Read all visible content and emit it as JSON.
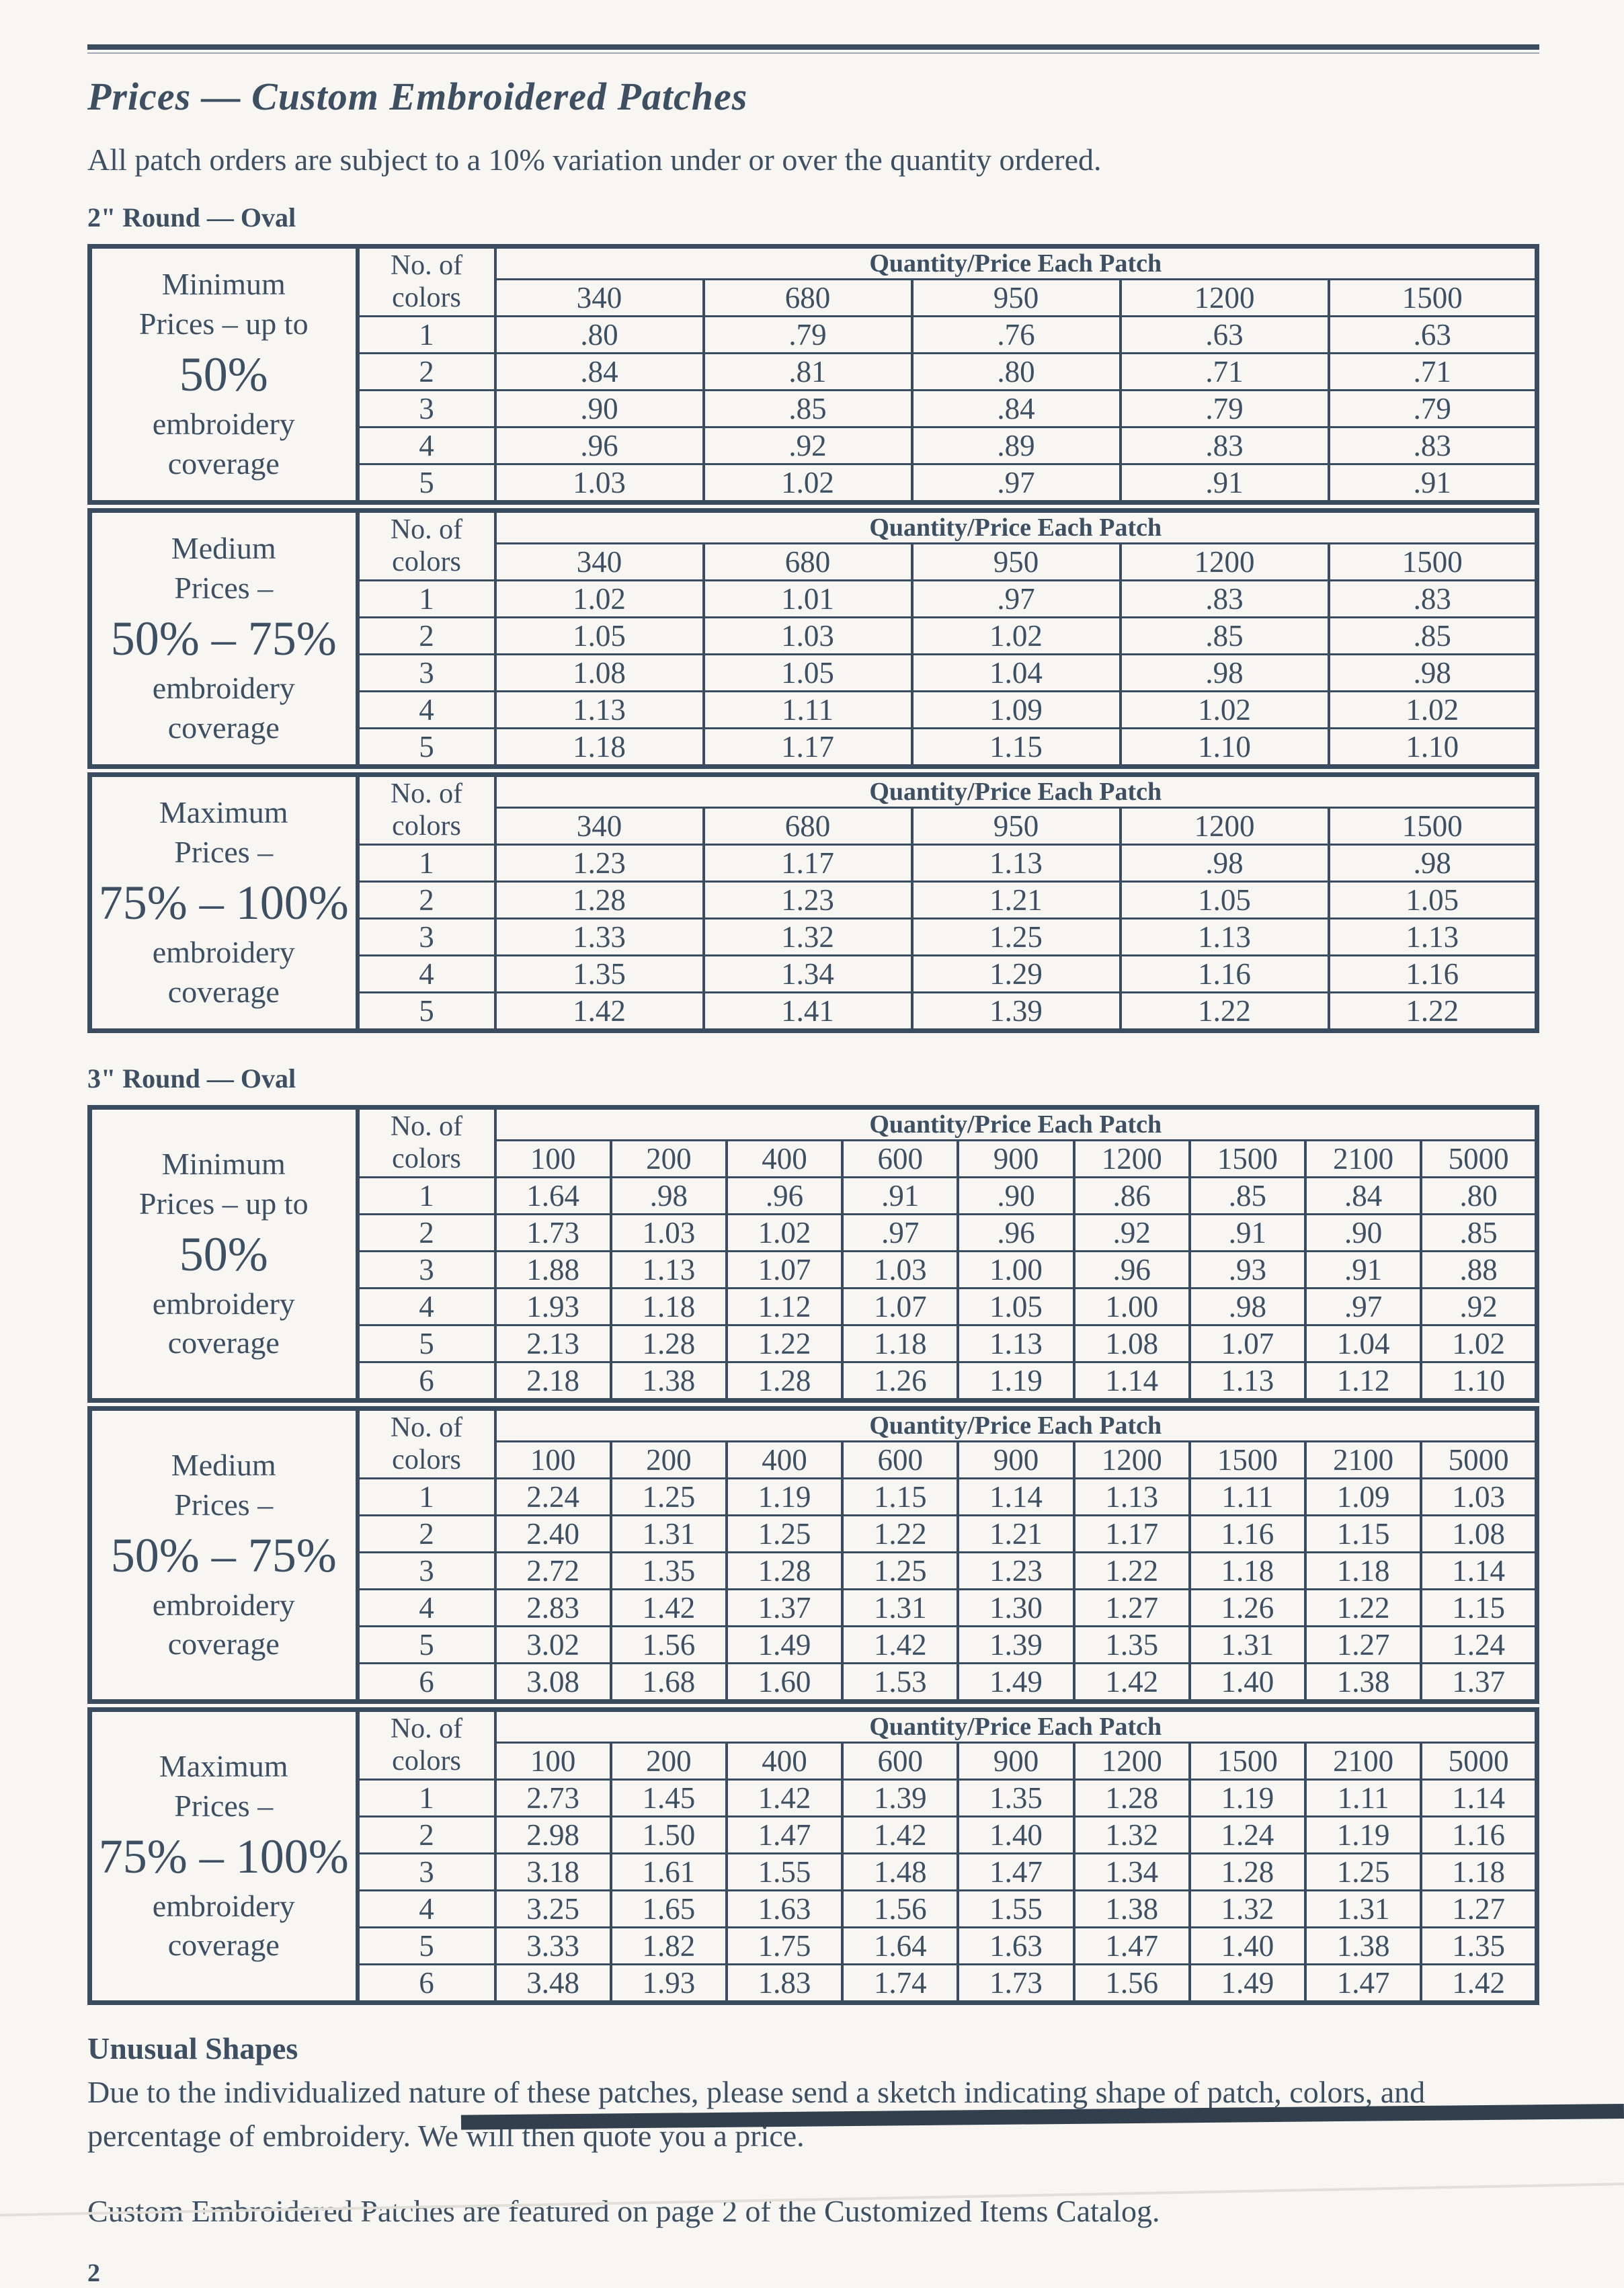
{
  "theme": {
    "ink": "#3e4f62",
    "line": "#3b4c60",
    "paper": "#f7f6f2"
  },
  "page": {
    "title": "Prices — Custom Embroidered Patches",
    "subtitle": "All patch orders are subject to a 10% variation under or over the quantity ordered.",
    "page_number": "2"
  },
  "table_labels": {
    "colors_header_lines": [
      "No. of",
      "colors"
    ],
    "qty_header": "Quantity/Price Each Patch"
  },
  "sections": [
    {
      "heading": "2\" Round — Oval",
      "quantities": [
        "340",
        "680",
        "950",
        "1200",
        "1500"
      ],
      "tables": [
        {
          "coverage_lines": [
            "Minimum",
            "Prices – up to",
            "50%",
            "embroidery",
            "coverage"
          ],
          "emphasis_line": 2,
          "rows": [
            {
              "colors": "1",
              "prices": [
                ".80",
                ".79",
                ".76",
                ".63",
                ".63"
              ]
            },
            {
              "colors": "2",
              "prices": [
                ".84",
                ".81",
                ".80",
                ".71",
                ".71"
              ]
            },
            {
              "colors": "3",
              "prices": [
                ".90",
                ".85",
                ".84",
                ".79",
                ".79"
              ]
            },
            {
              "colors": "4",
              "prices": [
                ".96",
                ".92",
                ".89",
                ".83",
                ".83"
              ]
            },
            {
              "colors": "5",
              "prices": [
                "1.03",
                "1.02",
                ".97",
                ".91",
                ".91"
              ]
            }
          ]
        },
        {
          "coverage_lines": [
            "Medium",
            "Prices –",
            "50% – 75%",
            "embroidery",
            "coverage"
          ],
          "emphasis_line": 2,
          "rows": [
            {
              "colors": "1",
              "prices": [
                "1.02",
                "1.01",
                ".97",
                ".83",
                ".83"
              ]
            },
            {
              "colors": "2",
              "prices": [
                "1.05",
                "1.03",
                "1.02",
                ".85",
                ".85"
              ]
            },
            {
              "colors": "3",
              "prices": [
                "1.08",
                "1.05",
                "1.04",
                ".98",
                ".98"
              ]
            },
            {
              "colors": "4",
              "prices": [
                "1.13",
                "1.11",
                "1.09",
                "1.02",
                "1.02"
              ]
            },
            {
              "colors": "5",
              "prices": [
                "1.18",
                "1.17",
                "1.15",
                "1.10",
                "1.10"
              ]
            }
          ]
        },
        {
          "coverage_lines": [
            "Maximum",
            "Prices –",
            "75% – 100%",
            "embroidery",
            "coverage"
          ],
          "emphasis_line": 2,
          "rows": [
            {
              "colors": "1",
              "prices": [
                "1.23",
                "1.17",
                "1.13",
                ".98",
                ".98"
              ]
            },
            {
              "colors": "2",
              "prices": [
                "1.28",
                "1.23",
                "1.21",
                "1.05",
                "1.05"
              ]
            },
            {
              "colors": "3",
              "prices": [
                "1.33",
                "1.32",
                "1.25",
                "1.13",
                "1.13"
              ]
            },
            {
              "colors": "4",
              "prices": [
                "1.35",
                "1.34",
                "1.29",
                "1.16",
                "1.16"
              ]
            },
            {
              "colors": "5",
              "prices": [
                "1.42",
                "1.41",
                "1.39",
                "1.22",
                "1.22"
              ]
            }
          ]
        }
      ]
    },
    {
      "heading": "3\" Round — Oval",
      "quantities": [
        "100",
        "200",
        "400",
        "600",
        "900",
        "1200",
        "1500",
        "2100",
        "5000"
      ],
      "tables": [
        {
          "coverage_lines": [
            "Minimum",
            "Prices – up to",
            "50%",
            "embroidery",
            "coverage"
          ],
          "emphasis_line": 2,
          "rows": [
            {
              "colors": "1",
              "prices": [
                "1.64",
                ".98",
                ".96",
                ".91",
                ".90",
                ".86",
                ".85",
                ".84",
                ".80"
              ]
            },
            {
              "colors": "2",
              "prices": [
                "1.73",
                "1.03",
                "1.02",
                ".97",
                ".96",
                ".92",
                ".91",
                ".90",
                ".85"
              ]
            },
            {
              "colors": "3",
              "prices": [
                "1.88",
                "1.13",
                "1.07",
                "1.03",
                "1.00",
                ".96",
                ".93",
                ".91",
                ".88"
              ]
            },
            {
              "colors": "4",
              "prices": [
                "1.93",
                "1.18",
                "1.12",
                "1.07",
                "1.05",
                "1.00",
                ".98",
                ".97",
                ".92"
              ]
            },
            {
              "colors": "5",
              "prices": [
                "2.13",
                "1.28",
                "1.22",
                "1.18",
                "1.13",
                "1.08",
                "1.07",
                "1.04",
                "1.02"
              ]
            },
            {
              "colors": "6",
              "prices": [
                "2.18",
                "1.38",
                "1.28",
                "1.26",
                "1.19",
                "1.14",
                "1.13",
                "1.12",
                "1.10"
              ]
            }
          ]
        },
        {
          "coverage_lines": [
            "Medium",
            "Prices –",
            "50% – 75%",
            "embroidery",
            "coverage"
          ],
          "emphasis_line": 2,
          "rows": [
            {
              "colors": "1",
              "prices": [
                "2.24",
                "1.25",
                "1.19",
                "1.15",
                "1.14",
                "1.13",
                "1.11",
                "1.09",
                "1.03"
              ]
            },
            {
              "colors": "2",
              "prices": [
                "2.40",
                "1.31",
                "1.25",
                "1.22",
                "1.21",
                "1.17",
                "1.16",
                "1.15",
                "1.08"
              ]
            },
            {
              "colors": "3",
              "prices": [
                "2.72",
                "1.35",
                "1.28",
                "1.25",
                "1.23",
                "1.22",
                "1.18",
                "1.18",
                "1.14"
              ]
            },
            {
              "colors": "4",
              "prices": [
                "2.83",
                "1.42",
                "1.37",
                "1.31",
                "1.30",
                "1.27",
                "1.26",
                "1.22",
                "1.15"
              ]
            },
            {
              "colors": "5",
              "prices": [
                "3.02",
                "1.56",
                "1.49",
                "1.42",
                "1.39",
                "1.35",
                "1.31",
                "1.27",
                "1.24"
              ]
            },
            {
              "colors": "6",
              "prices": [
                "3.08",
                "1.68",
                "1.60",
                "1.53",
                "1.49",
                "1.42",
                "1.40",
                "1.38",
                "1.37"
              ]
            }
          ]
        },
        {
          "coverage_lines": [
            "Maximum",
            "Prices –",
            "75% – 100%",
            "embroidery",
            "coverage"
          ],
          "emphasis_line": 2,
          "rows": [
            {
              "colors": "1",
              "prices": [
                "2.73",
                "1.45",
                "1.42",
                "1.39",
                "1.35",
                "1.28",
                "1.19",
                "1.11",
                "1.14"
              ]
            },
            {
              "colors": "2",
              "prices": [
                "2.98",
                "1.50",
                "1.47",
                "1.42",
                "1.40",
                "1.32",
                "1.24",
                "1.19",
                "1.16"
              ]
            },
            {
              "colors": "3",
              "prices": [
                "3.18",
                "1.61",
                "1.55",
                "1.48",
                "1.47",
                "1.34",
                "1.28",
                "1.25",
                "1.18"
              ]
            },
            {
              "colors": "4",
              "prices": [
                "3.25",
                "1.65",
                "1.63",
                "1.56",
                "1.55",
                "1.38",
                "1.32",
                "1.31",
                "1.27"
              ]
            },
            {
              "colors": "5",
              "prices": [
                "3.33",
                "1.82",
                "1.75",
                "1.64",
                "1.63",
                "1.47",
                "1.40",
                "1.38",
                "1.35"
              ]
            },
            {
              "colors": "6",
              "prices": [
                "3.48",
                "1.93",
                "1.83",
                "1.74",
                "1.73",
                "1.56",
                "1.49",
                "1.47",
                "1.42"
              ]
            }
          ]
        }
      ]
    }
  ],
  "footer": {
    "heading": "Unusual Shapes",
    "body": "Due to the individualized nature of these patches, please send a sketch indicating shape of patch, colors, and percentage of embroidery. We will then quote you a price.",
    "catalog_note": "Custom Embroidered Patches are featured on page 2 of the Customized Items Catalog."
  }
}
